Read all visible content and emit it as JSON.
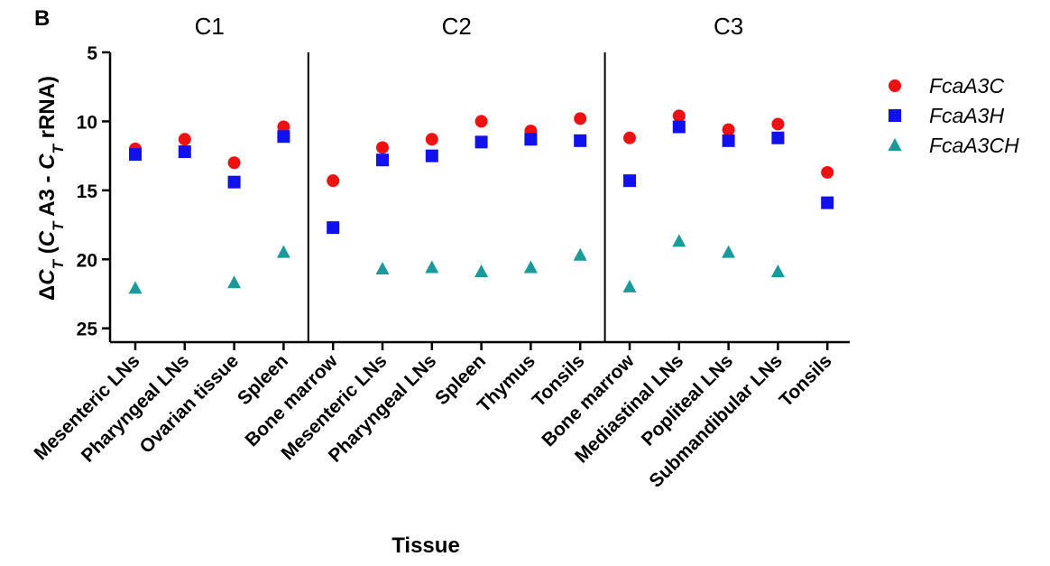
{
  "chart_data": {
    "type": "scatter",
    "panel_label": "B",
    "groups": [
      {
        "label": "C1",
        "count": 4
      },
      {
        "label": "C2",
        "count": 6
      },
      {
        "label": "C3",
        "count": 5
      }
    ],
    "categories": [
      "Mesenteric LNs",
      "Pharyngeal LNs",
      "Ovarian tissue",
      "Spleen",
      "Bone marrow",
      "Mesenteric LNs",
      "Pharyngeal LNs",
      "Spleen",
      "Thymus",
      "Tonsils",
      "Bone marrow",
      "Mediastinal LNs",
      "Popliteal LNs",
      "Submandibular LNs",
      "Tonsils"
    ],
    "series": [
      {
        "name": "FcaA3C",
        "marker": "circle",
        "color": "#ee1111",
        "values": [
          12.0,
          11.3,
          13.0,
          10.4,
          14.3,
          11.9,
          11.3,
          10.0,
          10.7,
          9.8,
          11.2,
          9.6,
          10.6,
          10.2,
          13.7
        ]
      },
      {
        "name": "FcaA3H",
        "marker": "square",
        "color": "#1111ee",
        "values": [
          12.4,
          12.2,
          14.4,
          11.1,
          17.7,
          12.8,
          12.5,
          11.5,
          11.3,
          11.4,
          14.3,
          10.4,
          11.4,
          11.2,
          15.9
        ]
      },
      {
        "name": "FcaA3CH",
        "marker": "triangle",
        "color": "#1a9a9a",
        "values": [
          22.1,
          null,
          21.7,
          19.5,
          null,
          20.7,
          20.6,
          20.9,
          20.6,
          19.7,
          22.0,
          18.7,
          19.5,
          20.9,
          null
        ]
      }
    ],
    "yticks": [
      5,
      10,
      15,
      20,
      25
    ],
    "ylim": [
      5,
      26
    ],
    "y_inverted": true,
    "ylabel_parts": [
      {
        "text": "Δ",
        "style": "normal"
      },
      {
        "text": "C",
        "style": "italic"
      },
      {
        "text": "T",
        "style": "italic-sub"
      },
      {
        "text": " (",
        "style": "normal"
      },
      {
        "text": "C",
        "style": "italic"
      },
      {
        "text": "T",
        "style": "italic-sub"
      },
      {
        "text": " A3 - ",
        "style": "normal"
      },
      {
        "text": "C",
        "style": "italic"
      },
      {
        "text": "T",
        "style": "italic-sub"
      },
      {
        "text": " rRNA)",
        "style": "normal"
      }
    ],
    "xlabel": "Tissue",
    "grid": false,
    "legend_position": "right"
  }
}
